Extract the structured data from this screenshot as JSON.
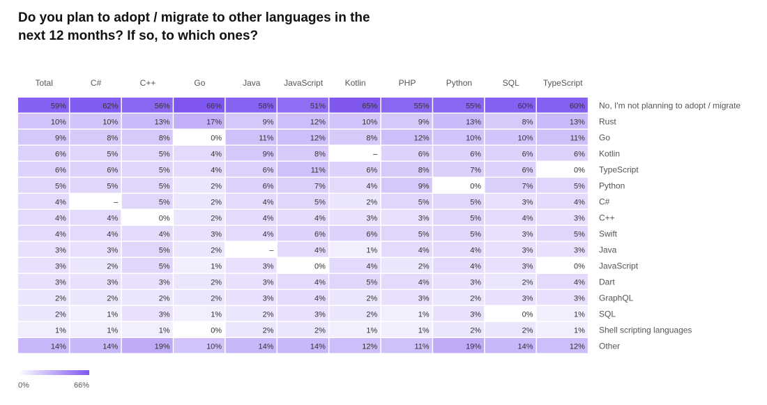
{
  "chart_data": {
    "type": "heatmap",
    "title": "Do you plan to adopt / migrate to other languages in the next 12 months? If so, to which ones?",
    "columns": [
      "Total",
      "C#",
      "C++",
      "Go",
      "Java",
      "JavaScript",
      "Kotlin",
      "PHP",
      "Python",
      "SQL",
      "TypeScript"
    ],
    "rows": [
      "No, I'm not planning to adopt / migrate",
      "Rust",
      "Go",
      "Kotlin",
      "TypeScript",
      "Python",
      "C#",
      "C++",
      "Swift",
      "Java",
      "JavaScript",
      "Dart",
      "GraphQL",
      "SQL",
      "Shell scripting languages",
      "Other"
    ],
    "values": [
      [
        59,
        62,
        56,
        66,
        58,
        51,
        65,
        55,
        55,
        60,
        60
      ],
      [
        10,
        10,
        13,
        17,
        9,
        12,
        10,
        9,
        13,
        8,
        13
      ],
      [
        9,
        8,
        8,
        0,
        11,
        12,
        8,
        12,
        10,
        10,
        11
      ],
      [
        6,
        5,
        5,
        4,
        9,
        8,
        null,
        6,
        6,
        6,
        6
      ],
      [
        6,
        6,
        5,
        4,
        6,
        11,
        6,
        8,
        7,
        6,
        0
      ],
      [
        5,
        5,
        5,
        2,
        6,
        7,
        4,
        9,
        0,
        7,
        5
      ],
      [
        4,
        null,
        5,
        2,
        4,
        5,
        2,
        5,
        5,
        3,
        4
      ],
      [
        4,
        4,
        0,
        2,
        4,
        4,
        3,
        3,
        5,
        4,
        3
      ],
      [
        4,
        4,
        4,
        3,
        4,
        6,
        6,
        5,
        5,
        3,
        5
      ],
      [
        3,
        3,
        5,
        2,
        null,
        4,
        1,
        4,
        4,
        3,
        3
      ],
      [
        3,
        2,
        5,
        1,
        3,
        0,
        4,
        2,
        4,
        3,
        0
      ],
      [
        3,
        3,
        3,
        2,
        3,
        4,
        5,
        4,
        3,
        2,
        4
      ],
      [
        2,
        2,
        2,
        2,
        3,
        4,
        2,
        3,
        2,
        3,
        3
      ],
      [
        2,
        1,
        3,
        1,
        2,
        3,
        2,
        1,
        3,
        0,
        1
      ],
      [
        1,
        1,
        1,
        0,
        2,
        2,
        1,
        1,
        2,
        2,
        1
      ],
      [
        14,
        14,
        19,
        10,
        14,
        14,
        12,
        11,
        19,
        14,
        12
      ]
    ],
    "missing_label": "–",
    "unit": "%",
    "color_scale": {
      "min": 0,
      "max": 66,
      "min_label": "0%",
      "max_label": "66%",
      "low_color": "#ffffff",
      "high_color": "#7f57f0"
    }
  }
}
